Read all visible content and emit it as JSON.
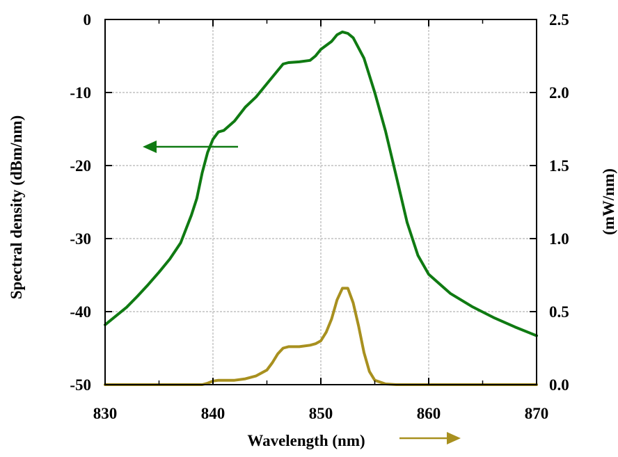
{
  "chart_data": {
    "type": "line",
    "xlabel": "Wavelength (nm)",
    "ylabel_left": "Spectral  density (dBm/nm)",
    "ylabel_right": "(mW/nm)",
    "xlim": [
      830,
      870
    ],
    "ylim_left": [
      -50,
      0
    ],
    "ylim_right": [
      0,
      2.5
    ],
    "x_ticks": [
      830,
      840,
      850,
      860,
      870
    ],
    "y_ticks_left": [
      0,
      -10,
      -20,
      -30,
      -40,
      -50
    ],
    "y_ticks_right": [
      "2.5",
      "2.0",
      "1.5",
      "1.0",
      "0.5",
      "0.0"
    ],
    "grid": true,
    "colors": {
      "dbm": "#0f7a12",
      "mw": "#a8901f"
    },
    "series": [
      {
        "name": "Spectral density (dBm/nm)",
        "axis": "left",
        "x": [
          830,
          831,
          832,
          833,
          834,
          835,
          836,
          837,
          838,
          838.5,
          839,
          839.5,
          840,
          840.5,
          841,
          842,
          843,
          844,
          845,
          846,
          846.5,
          847,
          848,
          849,
          849.5,
          850,
          851,
          851.5,
          852,
          852.5,
          853,
          854,
          855,
          856,
          857,
          858,
          859,
          860,
          862,
          864,
          866,
          868,
          870
        ],
        "values": [
          -41.8,
          -40.6,
          -39.4,
          -37.9,
          -36.3,
          -34.6,
          -32.8,
          -30.6,
          -26.8,
          -24.5,
          -21.0,
          -18.2,
          -16.4,
          -15.4,
          -15.2,
          -13.9,
          -12.0,
          -10.6,
          -8.8,
          -7.0,
          -6.1,
          -5.9,
          -5.8,
          -5.6,
          -5.0,
          -4.1,
          -3.0,
          -2.1,
          -1.7,
          -1.9,
          -2.5,
          -5.3,
          -10.0,
          -15.3,
          -21.5,
          -27.8,
          -32.3,
          -34.9,
          -37.5,
          -39.3,
          -40.8,
          -42.1,
          -43.3
        ]
      },
      {
        "name": "Spectral density (mW/nm)",
        "axis": "right",
        "x": [
          830,
          838,
          839,
          839.5,
          840,
          840.5,
          842,
          843,
          844,
          845,
          845.5,
          846,
          846.5,
          847,
          848,
          849,
          849.5,
          850,
          850.5,
          851,
          851.5,
          852,
          852.5,
          853,
          853.5,
          854,
          854.5,
          855,
          856,
          857,
          870
        ],
        "values": [
          0.0,
          0.0,
          0.0,
          0.01,
          0.025,
          0.03,
          0.03,
          0.04,
          0.06,
          0.1,
          0.15,
          0.21,
          0.25,
          0.26,
          0.26,
          0.27,
          0.28,
          0.3,
          0.36,
          0.45,
          0.58,
          0.66,
          0.66,
          0.56,
          0.4,
          0.22,
          0.09,
          0.03,
          0.005,
          0.0,
          0.0
        ]
      }
    ],
    "annotations": [
      {
        "type": "arrow",
        "direction": "left",
        "series": "Spectral density (dBm/nm)",
        "color": "#0f7a12"
      },
      {
        "type": "arrow",
        "direction": "right",
        "series": "Spectral density (mW/nm)",
        "color": "#a8901f"
      }
    ]
  }
}
